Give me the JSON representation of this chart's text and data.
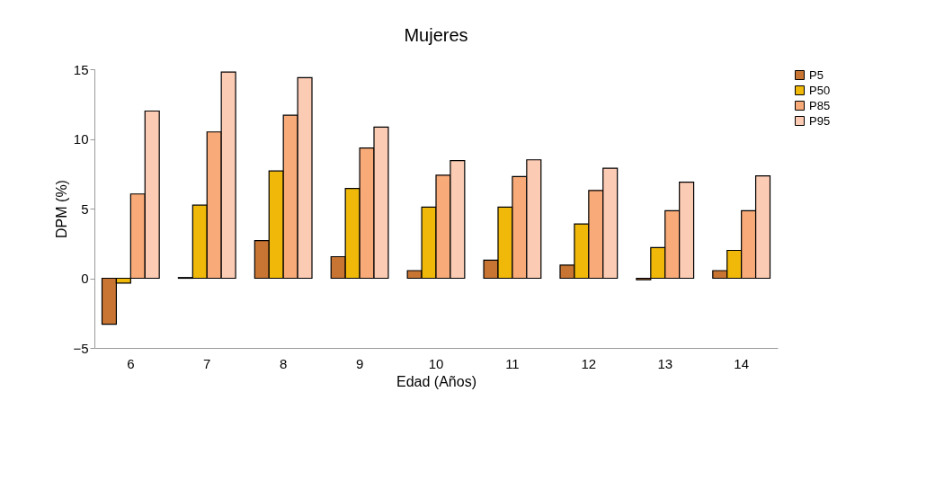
{
  "chart_data": {
    "type": "bar",
    "title": "Mujeres",
    "xlabel": "Edad (Años)",
    "ylabel": "DPM (%)",
    "categories": [
      "6",
      "7",
      "8",
      "9",
      "10",
      "11",
      "12",
      "13",
      "14"
    ],
    "series": [
      {
        "name": "P5",
        "color": "#c87533",
        "values": [
          -3.3,
          0.05,
          2.7,
          1.55,
          0.55,
          1.3,
          0.95,
          -0.1,
          0.55
        ]
      },
      {
        "name": "P50",
        "color": "#f0b90a",
        "values": [
          -0.35,
          5.25,
          7.7,
          6.45,
          5.1,
          5.1,
          3.9,
          2.2,
          2.0
        ]
      },
      {
        "name": "P85",
        "color": "#f8aa78",
        "values": [
          6.05,
          10.5,
          11.7,
          9.35,
          7.4,
          7.3,
          6.3,
          4.85,
          4.85
        ]
      },
      {
        "name": "P95",
        "color": "#fccbb4",
        "values": [
          12.0,
          14.8,
          14.4,
          10.85,
          8.45,
          8.5,
          7.9,
          6.9,
          7.35
        ]
      }
    ],
    "ylim": [
      -5,
      15
    ],
    "yticks": [
      -5,
      0,
      5,
      10,
      15
    ],
    "grid": false,
    "legend": "right"
  }
}
